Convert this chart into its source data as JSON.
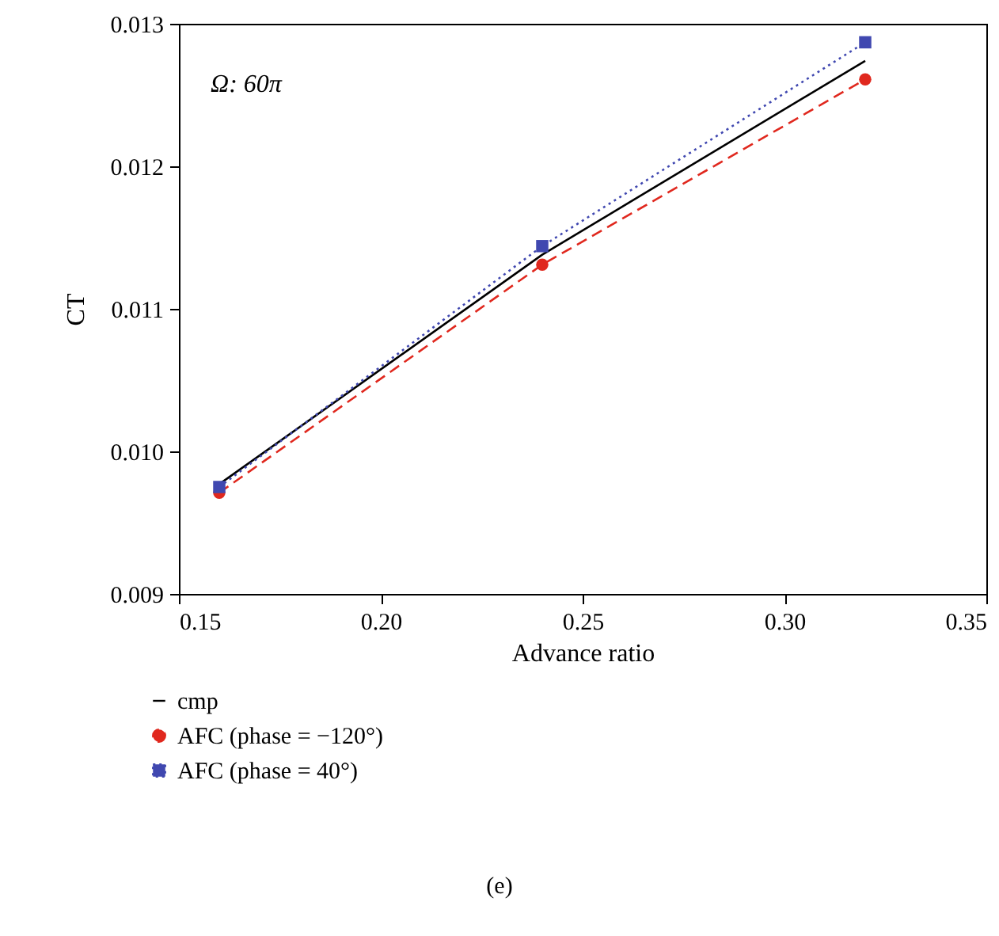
{
  "chart_data": {
    "type": "line",
    "xlabel": "Advance ratio",
    "ylabel": "CT",
    "x": [
      0.16,
      0.24,
      0.32
    ],
    "series": [
      {
        "name": "cmp",
        "color": "#000000",
        "values": [
          0.00977,
          0.01138,
          0.01274
        ],
        "line_style": "solid",
        "marker": "none"
      },
      {
        "name": "AFC (phase = −120°)",
        "color": "#e0281e",
        "values": [
          0.00971,
          0.01131,
          0.01261
        ],
        "line_style": "dashed",
        "marker": "circle"
      },
      {
        "name": "AFC (phase = 40°)",
        "color": "#4048b0",
        "values": [
          0.00975,
          0.01144,
          0.01287
        ],
        "line_style": "dotted",
        "marker": "square"
      }
    ],
    "xlim": [
      0.15,
      0.35
    ],
    "xticks": [
      0.15,
      {
        "value": 0.2,
        "label": "0.20"
      },
      0.25,
      {
        "value": 0.3,
        "label": "0.30"
      },
      0.35
    ],
    "ylim": [
      0.009,
      0.013
    ],
    "yticks": [
      0.009,
      {
        "value": 0.01,
        "label": "0.010"
      },
      0.011,
      0.012,
      0.013
    ],
    "grid": false,
    "legend": "bottom left",
    "annotations": [
      "Ω: 60π",
      "(e)"
    ]
  }
}
